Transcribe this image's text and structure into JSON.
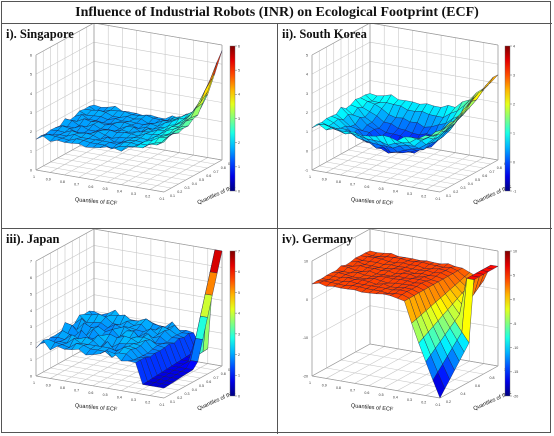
{
  "title": "Influence of Industrial Robots (INR) on Ecological Footprint (ECF)",
  "colormap": "jet",
  "colors": {
    "border": "#555555",
    "background": "#ffffff"
  },
  "chart_data": [
    {
      "type": "surface3d",
      "panel_label": "i). Singapore",
      "xlabel": "Quantiles of ECF",
      "ylabel": "Quantiles of INR",
      "x_ticks": [
        "1",
        "0.9",
        "0.8",
        "0.7",
        "0.6",
        "0.5",
        "0.4",
        "0.3",
        "0.2",
        "0.1"
      ],
      "y_ticks": [
        "0.1",
        "0.2",
        "0.3",
        "0.4",
        "0.5",
        "0.6",
        "0.7",
        "0.8",
        "0.9"
      ],
      "z_ticks": [
        "0",
        "1",
        "2",
        "3",
        "4",
        "5",
        "6"
      ],
      "colorbar_ticks": [
        "0",
        "1",
        "2",
        "3",
        "4",
        "5",
        "6"
      ],
      "zlim": [
        0,
        6
      ],
      "grid": true,
      "surface_shape": "flat near 2 with sharp rise to about 6 at low ECF quantiles"
    },
    {
      "type": "surface3d",
      "panel_label": "ii). South Korea",
      "xlabel": "Quantiles of ECF",
      "ylabel": "Quantiles of INR",
      "x_ticks": [
        "1",
        "0.9",
        "0.8",
        "0.7",
        "0.6",
        "0.5",
        "0.4",
        "0.3",
        "0.2",
        "0.1"
      ],
      "y_ticks": [
        "0.1",
        "0.2",
        "0.3",
        "0.4",
        "0.5",
        "0.6",
        "0.7",
        "0.8",
        "0.9"
      ],
      "z_ticks": [
        "-1",
        "0",
        "1",
        "2",
        "3",
        "4",
        "5"
      ],
      "colorbar_ticks": [
        "-1",
        "0",
        "1",
        "2",
        "3",
        "4"
      ],
      "zlim": [
        -1,
        5
      ],
      "grid": true,
      "surface_shape": "bowl with rising ridge to about 4 at low ECF quantiles"
    },
    {
      "type": "surface3d",
      "panel_label": "iii). Japan",
      "xlabel": "Quantiles of ECF",
      "ylabel": "Quantiles of INR",
      "x_ticks": [
        "1",
        "0.9",
        "0.8",
        "0.7",
        "0.6",
        "0.5",
        "0.4",
        "0.3",
        "0.2",
        "0.1"
      ],
      "y_ticks": [
        "0.1",
        "0.2",
        "0.3",
        "0.4",
        "0.5",
        "0.6",
        "0.7",
        "0.8",
        "0.9"
      ],
      "z_ticks": [
        "0",
        "1",
        "2",
        "3",
        "4",
        "5",
        "6",
        "7"
      ],
      "colorbar_ticks": [
        "0",
        "1",
        "2",
        "3",
        "4",
        "5",
        "6",
        "7"
      ],
      "zlim": [
        0,
        7
      ],
      "grid": true,
      "surface_shape": "low flat surface around 2 with orange spike near 7 at low ECF quantiles"
    },
    {
      "type": "surface3d",
      "panel_label": "iv). Germany",
      "xlabel": "Quantiles of ECF",
      "ylabel": "Quantiles of INR",
      "x_ticks": [
        "1",
        "0.9",
        "0.8",
        "0.7",
        "0.6",
        "0.5",
        "0.4",
        "0.3",
        "0.2",
        "0.1"
      ],
      "y_ticks": [
        "0.2",
        "0.4",
        "0.6",
        "0.8",
        "1"
      ],
      "z_ticks": [
        "-20",
        "-10",
        "0",
        "10"
      ],
      "colorbar_ticks": [
        "-20",
        "-15",
        "-10",
        "-5",
        "0",
        "5",
        "10"
      ],
      "zlim": [
        -20,
        10
      ],
      "grid": true,
      "surface_shape": "flat plateau near 5 with orange sheet dropping steeply at low ECF quantiles"
    }
  ]
}
